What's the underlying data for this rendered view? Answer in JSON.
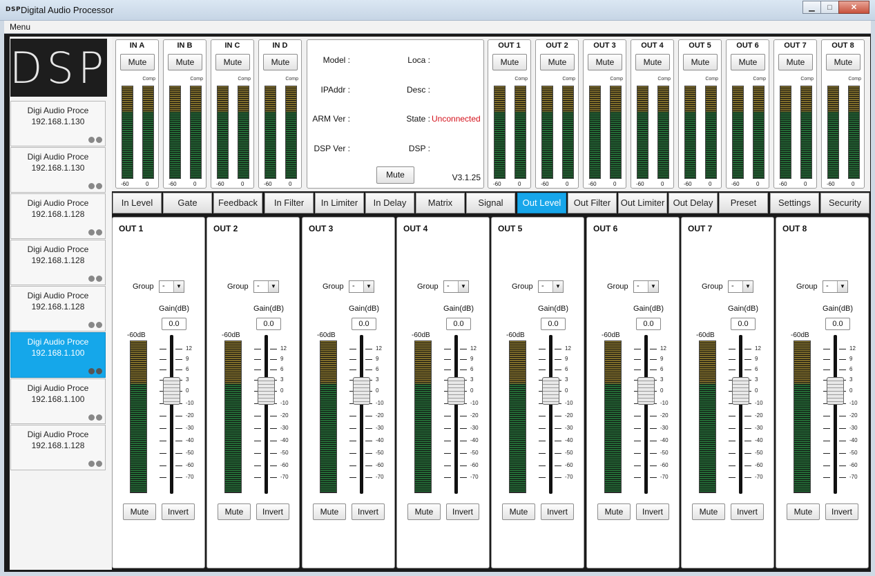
{
  "window": {
    "logo": "DSP",
    "title": "Digital Audio Processor",
    "controls": {
      "minimize": "▁",
      "maximize": "□",
      "close": "✕"
    }
  },
  "menu": {
    "label": "Menu"
  },
  "sidebar": {
    "logo_text": "DSP",
    "devices": [
      {
        "name": "Digi Audio Proce",
        "ip": "192.168.1.130",
        "selected": false
      },
      {
        "name": "Digi Audio Proce",
        "ip": "192.168.1.130",
        "selected": false
      },
      {
        "name": "Digi Audio Proce",
        "ip": "192.168.1.128",
        "selected": false
      },
      {
        "name": "Digi Audio Proce",
        "ip": "192.168.1.128",
        "selected": false
      },
      {
        "name": "Digi Audio Proce",
        "ip": "192.168.1.128",
        "selected": false
      },
      {
        "name": "Digi Audio Proce",
        "ip": "192.168.1.100",
        "selected": true
      },
      {
        "name": "Digi Audio Proce",
        "ip": "192.168.1.100",
        "selected": false
      },
      {
        "name": "Digi Audio Proce",
        "ip": "192.168.1.128",
        "selected": false
      }
    ]
  },
  "inputs": [
    {
      "label": "IN A",
      "mute": "Mute",
      "comp": "Comp",
      "scale_min": "-60",
      "scale_max": "0"
    },
    {
      "label": "IN B",
      "mute": "Mute",
      "comp": "Comp",
      "scale_min": "-60",
      "scale_max": "0"
    },
    {
      "label": "IN C",
      "mute": "Mute",
      "comp": "Comp",
      "scale_min": "-60",
      "scale_max": "0"
    },
    {
      "label": "IN D",
      "mute": "Mute",
      "comp": "Comp",
      "scale_min": "-60",
      "scale_max": "0"
    }
  ],
  "outputs": [
    {
      "label": "OUT 1",
      "mute": "Mute",
      "comp": "Comp",
      "scale_min": "-60",
      "scale_max": "0"
    },
    {
      "label": "OUT 2",
      "mute": "Mute",
      "comp": "Comp",
      "scale_min": "-60",
      "scale_max": "0"
    },
    {
      "label": "OUT 3",
      "mute": "Mute",
      "comp": "Comp",
      "scale_min": "-60",
      "scale_max": "0"
    },
    {
      "label": "OUT 4",
      "mute": "Mute",
      "comp": "Comp",
      "scale_min": "-60",
      "scale_max": "0"
    },
    {
      "label": "OUT 5",
      "mute": "Mute",
      "comp": "Comp",
      "scale_min": "-60",
      "scale_max": "0"
    },
    {
      "label": "OUT 6",
      "mute": "Mute",
      "comp": "Comp",
      "scale_min": "-60",
      "scale_max": "0"
    },
    {
      "label": "OUT 7",
      "mute": "Mute",
      "comp": "Comp",
      "scale_min": "-60",
      "scale_max": "0"
    },
    {
      "label": "OUT 8",
      "mute": "Mute",
      "comp": "Comp",
      "scale_min": "-60",
      "scale_max": "0"
    }
  ],
  "info": {
    "model_label": "Model :",
    "loca_label": "Loca :",
    "ipaddr_label": "IPAddr :",
    "desc_label": "Desc :",
    "arm_label": "ARM Ver :",
    "state_label": "State :",
    "state_value": "Unconnected",
    "state_color": "#d4111b",
    "dspver_label": "DSP Ver :",
    "dsp_label": "DSP :",
    "mute": "Mute",
    "version": "V3.1.25"
  },
  "tabs": [
    {
      "label": "In Level",
      "active": false
    },
    {
      "label": "Gate",
      "active": false
    },
    {
      "label": "Feedback",
      "active": false
    },
    {
      "label": "In Filter",
      "active": false
    },
    {
      "label": "In Limiter",
      "active": false
    },
    {
      "label": "In Delay",
      "active": false
    },
    {
      "label": "Matrix",
      "active": false
    },
    {
      "label": "Signal",
      "active": false
    },
    {
      "label": "Out Level",
      "active": true
    },
    {
      "label": "Out Filter",
      "active": false
    },
    {
      "label": "Out Limiter",
      "active": false
    },
    {
      "label": "Out Delay",
      "active": false
    },
    {
      "label": "Preset",
      "active": false
    },
    {
      "label": "Settings",
      "active": false
    },
    {
      "label": "Security",
      "active": false
    }
  ],
  "accent_color": "#17a6ea",
  "out_level": {
    "group_label": "Group",
    "group_value": "-",
    "gain_label": "Gain(dB)",
    "meter_label": "-60dB",
    "scale": [
      "12",
      "9",
      "6",
      "3",
      "0",
      "-10",
      "-20",
      "-30",
      "-40",
      "-50",
      "-60",
      "-70"
    ],
    "mute": "Mute",
    "invert": "Invert",
    "channels": [
      {
        "label": "OUT 1",
        "gain": "0.0"
      },
      {
        "label": "OUT 2",
        "gain": "0.0"
      },
      {
        "label": "OUT 3",
        "gain": "0.0"
      },
      {
        "label": "OUT 4",
        "gain": "0.0"
      },
      {
        "label": "OUT 5",
        "gain": "0.0"
      },
      {
        "label": "OUT 6",
        "gain": "0.0"
      },
      {
        "label": "OUT 7",
        "gain": "0.0"
      },
      {
        "label": "OUT 8",
        "gain": "0.0"
      }
    ]
  }
}
